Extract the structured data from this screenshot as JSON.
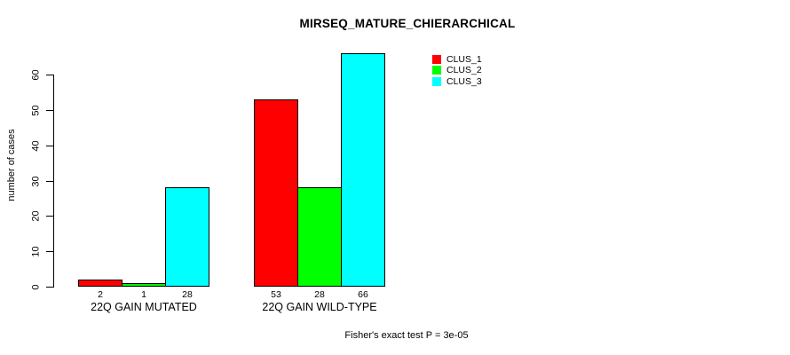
{
  "chart_data": {
    "type": "bar",
    "title": "MIRSEQ_MATURE_CHIERARCHICAL",
    "ylabel": "number of cases",
    "xlabel": "",
    "categories": [
      "22Q GAIN MUTATED",
      "22Q GAIN WILD-TYPE"
    ],
    "series": [
      {
        "name": "CLUS_1",
        "color": "#FF0000",
        "values": [
          2,
          53
        ]
      },
      {
        "name": "CLUS_2",
        "color": "#00FF00",
        "values": [
          1,
          28
        ]
      },
      {
        "name": "CLUS_3",
        "color": "#00FFFF",
        "values": [
          28,
          66
        ]
      }
    ],
    "bar_value_labels": true,
    "yticks": [
      0,
      10,
      20,
      30,
      40,
      50,
      60
    ],
    "ylim": [
      0,
      66
    ],
    "grid": false,
    "legend_position": "top-right",
    "annotation": "Fisher's exact test P = 3e-05",
    "bar_border_color": "#000000",
    "axis_color": "#000000",
    "background_color": "#FFFFFF"
  }
}
